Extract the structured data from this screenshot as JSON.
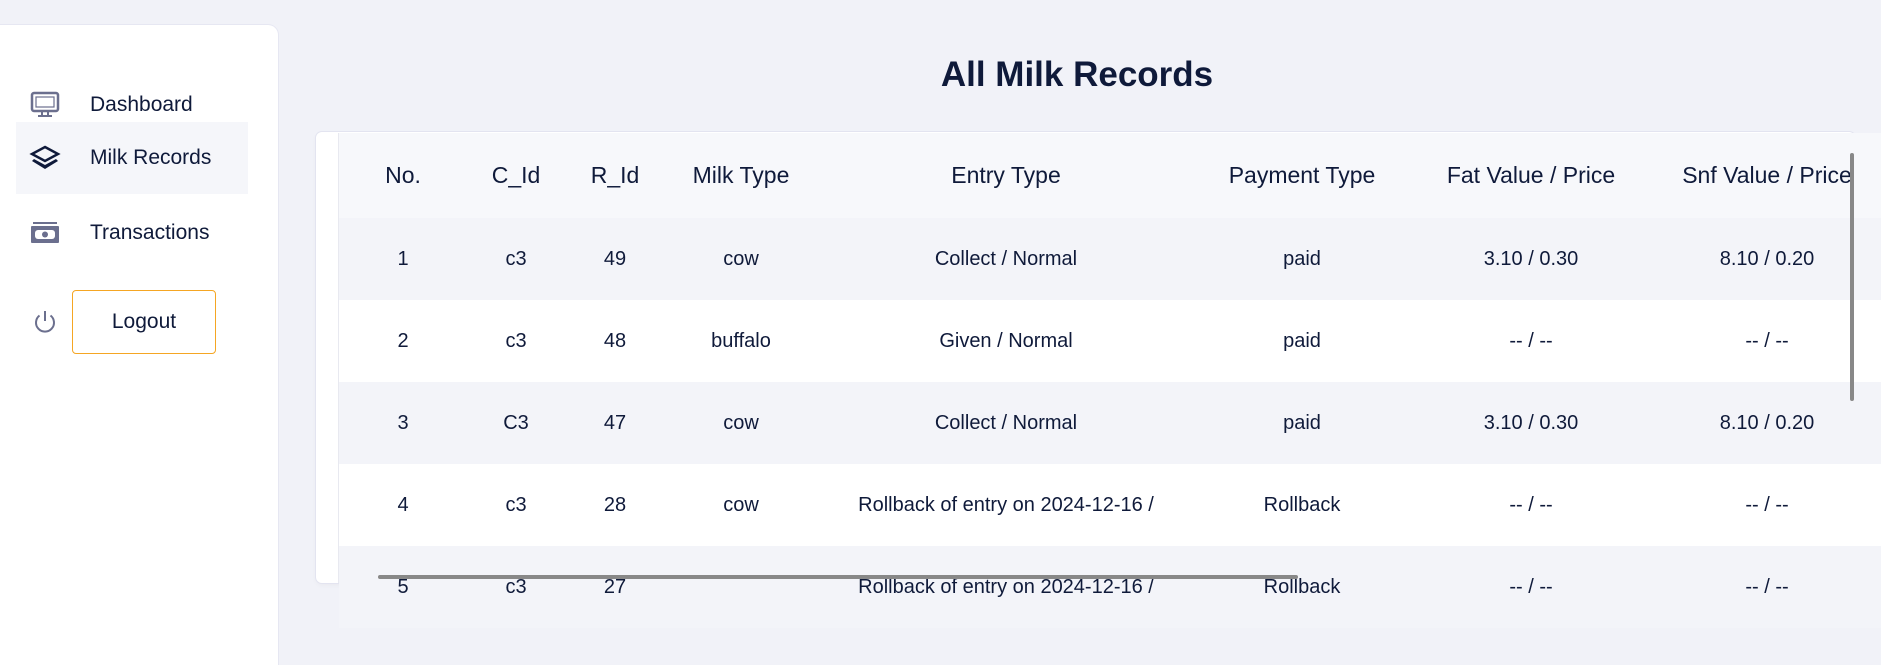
{
  "sidebar": {
    "items": [
      {
        "label": "Dashboard",
        "icon": "monitor-icon",
        "active": false
      },
      {
        "label": "Milk Records",
        "icon": "layers-icon",
        "active": true
      },
      {
        "label": "Transactions",
        "icon": "money-icon",
        "active": false
      }
    ],
    "logout_label": "Logout"
  },
  "page": {
    "title": "All Milk Records"
  },
  "table": {
    "headers": [
      "No.",
      "C_Id",
      "R_Id",
      "Milk Type",
      "Entry Type",
      "Payment Type",
      "Fat Value / Price",
      "Snf Value / Price"
    ],
    "rows": [
      [
        "1",
        "c3",
        "49",
        "cow",
        "Collect / Normal",
        "paid",
        "3.10 / 0.30",
        "8.10 / 0.20"
      ],
      [
        "2",
        "c3",
        "48",
        "buffalo",
        "Given / Normal",
        "paid",
        "-- / --",
        "-- / --"
      ],
      [
        "3",
        "C3",
        "47",
        "cow",
        "Collect / Normal",
        "paid",
        "3.10 / 0.30",
        "8.10 / 0.20"
      ],
      [
        "4",
        "c3",
        "28",
        "cow",
        "Rollback of entry on 2024-12-16 /",
        "Rollback",
        "-- / --",
        "-- / --"
      ],
      [
        "5",
        "c3",
        "27",
        "",
        "Rollback of entry on 2024-12-16 /",
        "Rollback",
        "-- / --",
        "-- / --"
      ]
    ]
  },
  "colors": {
    "accent": "#f5a623",
    "text": "#0f1a3a",
    "background": "#f1f2f8"
  }
}
